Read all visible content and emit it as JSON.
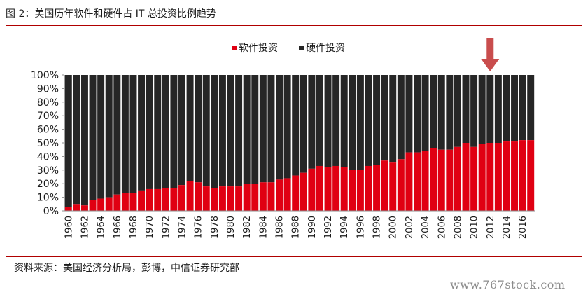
{
  "figure_title": "图 2：美国历年软件和硬件占 IT 总投资比例趋势",
  "source": "资料来源：美国经济分析局，彭博，中信证券研究部",
  "watermark": "www.767stock.com",
  "colors": {
    "software": "#e00012",
    "hardware": "#262626",
    "rule": "#b00000",
    "arrow": "#c94d4d"
  },
  "annotation": {
    "type": "down-arrow",
    "points_to_year": 2012
  },
  "chart_data": {
    "type": "bar",
    "stacked": true,
    "percent": true,
    "title": "美国历年软件和硬件占 IT 总投资比例趋势",
    "xlabel": "",
    "ylabel": "",
    "ylim": [
      0,
      100
    ],
    "yticks": [
      "0%",
      "10%",
      "20%",
      "30%",
      "40%",
      "50%",
      "60%",
      "70%",
      "80%",
      "90%",
      "100%"
    ],
    "legend_position": "top-center",
    "categories": [
      1960,
      1961,
      1962,
      1963,
      1964,
      1965,
      1966,
      1967,
      1968,
      1969,
      1970,
      1971,
      1972,
      1973,
      1974,
      1975,
      1976,
      1977,
      1978,
      1979,
      1980,
      1981,
      1982,
      1983,
      1984,
      1985,
      1986,
      1987,
      1988,
      1989,
      1990,
      1991,
      1992,
      1993,
      1994,
      1995,
      1996,
      1997,
      1998,
      1999,
      2000,
      2001,
      2002,
      2003,
      2004,
      2005,
      2006,
      2007,
      2008,
      2009,
      2010,
      2011,
      2012,
      2013,
      2014,
      2015,
      2016,
      2017
    ],
    "xtick_labels": [
      "1960",
      "1962",
      "1964",
      "1966",
      "1968",
      "1970",
      "1972",
      "1974",
      "1976",
      "1978",
      "1980",
      "1982",
      "1984",
      "1986",
      "1988",
      "1990",
      "1992",
      "1994",
      "1996",
      "1998",
      "2000",
      "2002",
      "2004",
      "2006",
      "2008",
      "2010",
      "2012",
      "2014",
      "2016"
    ],
    "series": [
      {
        "name": "软件投资",
        "color": "#e00012",
        "values": [
          3,
          5,
          4,
          8,
          9,
          10,
          12,
          13,
          13,
          15,
          16,
          16,
          17,
          17,
          19,
          22,
          21,
          18,
          17,
          18,
          18,
          18,
          20,
          20,
          21,
          21,
          23,
          24,
          26,
          28,
          31,
          33,
          32,
          33,
          32,
          30,
          30,
          33,
          34,
          37,
          36,
          38,
          43,
          43,
          44,
          46,
          45,
          45,
          47,
          50,
          47,
          49,
          50,
          50,
          51,
          51,
          52,
          52
        ]
      },
      {
        "name": "硬件投资",
        "color": "#262626",
        "values": [
          97,
          95,
          96,
          92,
          91,
          90,
          88,
          87,
          87,
          85,
          84,
          84,
          83,
          83,
          81,
          78,
          79,
          82,
          83,
          82,
          82,
          82,
          80,
          80,
          79,
          79,
          77,
          76,
          74,
          72,
          69,
          67,
          68,
          67,
          68,
          70,
          70,
          67,
          66,
          63,
          64,
          62,
          57,
          57,
          56,
          54,
          55,
          55,
          53,
          50,
          53,
          51,
          50,
          50,
          49,
          49,
          48,
          48
        ]
      }
    ]
  }
}
